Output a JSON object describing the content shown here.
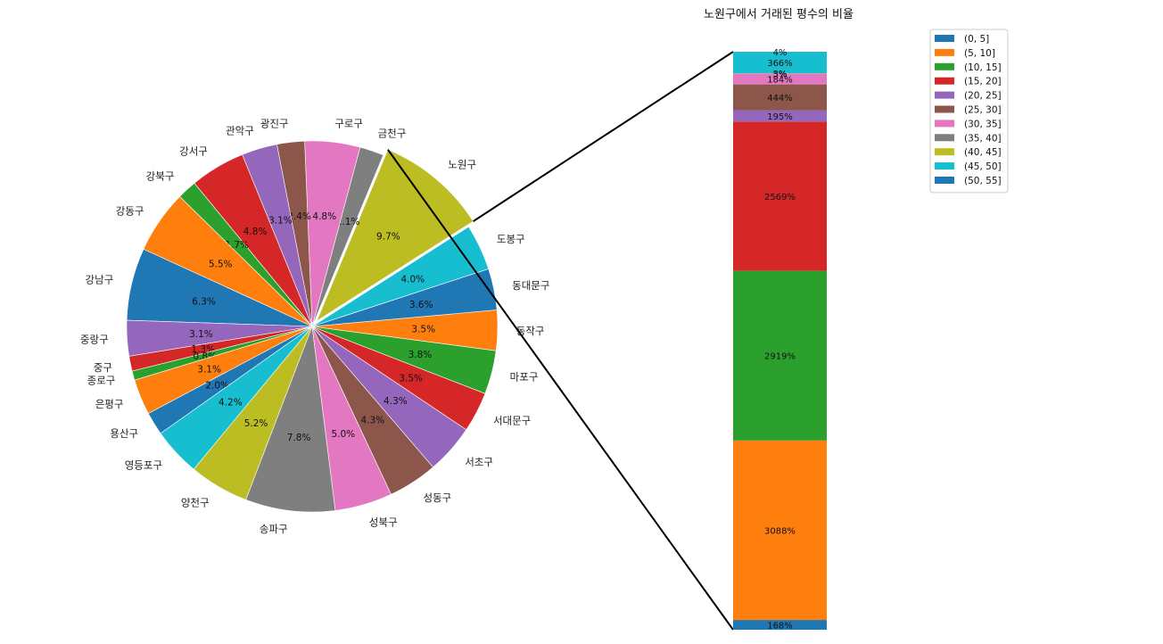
{
  "chart_data": [
    {
      "type": "pie",
      "slices": [
        {
          "label": "노원구",
          "value": 9.7,
          "color": "#bcbd22"
        },
        {
          "label": "금천구",
          "value": 2.1,
          "color": "#7f7f7f"
        },
        {
          "label": "구로구",
          "value": 4.8,
          "color": "#e377c2"
        },
        {
          "label": "광진구",
          "value": 2.4,
          "color": "#8c564b"
        },
        {
          "label": "관악구",
          "value": 3.1,
          "color": "#9467bd"
        },
        {
          "label": "강서구",
          "value": 4.8,
          "color": "#d62728"
        },
        {
          "label": "강북구",
          "value": 1.7,
          "color": "#2ca02c"
        },
        {
          "label": "강동구",
          "value": 5.5,
          "color": "#ff7f0e"
        },
        {
          "label": "강남구",
          "value": 6.3,
          "color": "#1f77b4"
        },
        {
          "label": "중랑구",
          "value": 3.1,
          "color": "#9467bd"
        },
        {
          "label": "중구",
          "value": 1.3,
          "color": "#d62728"
        },
        {
          "label": "종로구",
          "value": 0.8,
          "color": "#2ca02c"
        },
        {
          "label": "은평구",
          "value": 3.1,
          "color": "#ff7f0e"
        },
        {
          "label": "용산구",
          "value": 2.0,
          "color": "#1f77b4"
        },
        {
          "label": "영등포구",
          "value": 4.2,
          "color": "#17becf"
        },
        {
          "label": "양천구",
          "value": 5.2,
          "color": "#bcbd22"
        },
        {
          "label": "송파구",
          "value": 7.8,
          "color": "#7f7f7f"
        },
        {
          "label": "성북구",
          "value": 5.0,
          "color": "#e377c2"
        },
        {
          "label": "성동구",
          "value": 4.3,
          "color": "#8c564b"
        },
        {
          "label": "서초구",
          "value": 4.3,
          "color": "#9467bd"
        },
        {
          "label": "서대문구",
          "value": 3.5,
          "color": "#d62728"
        },
        {
          "label": "마포구",
          "value": 3.8,
          "color": "#2ca02c"
        },
        {
          "label": "동작구",
          "value": 3.5,
          "color": "#ff7f0e"
        },
        {
          "label": "동대문구",
          "value": 3.6,
          "color": "#1f77b4"
        },
        {
          "label": "도봉구",
          "value": 4.0,
          "color": "#17becf"
        }
      ],
      "value_format": "%.1f%%",
      "exploded_slice": "노원구"
    },
    {
      "type": "bar",
      "stacked": true,
      "title": "노원구에서 거래된 평수의 비율",
      "legend_position": "top-right",
      "categories": [
        "(0, 5]",
        "(5, 10]",
        "(10, 15]",
        "(15, 20]",
        "(20, 25]",
        "(25, 30]",
        "(30, 35]",
        "(35, 40]",
        "(40, 45]",
        "(45, 50]",
        "(50, 55]"
      ],
      "values": [
        168,
        3088,
        2919,
        2569,
        195,
        444,
        184,
        5,
        3,
        366,
        4
      ],
      "value_labels": [
        "168%",
        "3088%",
        "2919%",
        "2569%",
        "195%",
        "444%",
        "184%",
        "5%",
        "3%",
        "366%",
        "4%"
      ],
      "colors": [
        "#1f77b4",
        "#ff7f0e",
        "#2ca02c",
        "#d62728",
        "#9467bd",
        "#8c564b",
        "#e377c2",
        "#7f7f7f",
        "#bcbd22",
        "#17becf",
        "#1f77b4"
      ]
    }
  ]
}
